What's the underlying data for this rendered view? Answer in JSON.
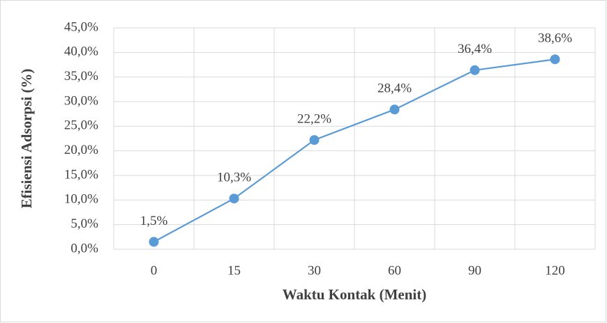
{
  "chart_data": {
    "type": "line",
    "x_label": "Waktu Kontak (Menit)",
    "y_label": "Efisiensi Adsorpsi (%)",
    "categories": [
      "0",
      "15",
      "30",
      "60",
      "90",
      "120"
    ],
    "series": [
      {
        "name": "Efisiensi Adsorpsi",
        "color": "#5b9bd5",
        "values": [
          1.5,
          10.3,
          22.2,
          28.4,
          36.4,
          38.6
        ],
        "value_labels": [
          "1,5%",
          "10,3%",
          "22,2%",
          "28,4%",
          "36,4%",
          "38,6%"
        ]
      }
    ],
    "ylim": [
      0,
      45
    ],
    "yticks": [
      {
        "value": 0,
        "label": "0,0%"
      },
      {
        "value": 5,
        "label": "5,0%"
      },
      {
        "value": 10,
        "label": "10,0%"
      },
      {
        "value": 15,
        "label": "15,0%"
      },
      {
        "value": 20,
        "label": "20,0%"
      },
      {
        "value": 25,
        "label": "25,0%"
      },
      {
        "value": 30,
        "label": "30,0%"
      },
      {
        "value": 35,
        "label": "35,0%"
      },
      {
        "value": 40,
        "label": "40,0%"
      },
      {
        "value": 45,
        "label": "45,0%"
      }
    ],
    "grid": true,
    "legend": false
  }
}
